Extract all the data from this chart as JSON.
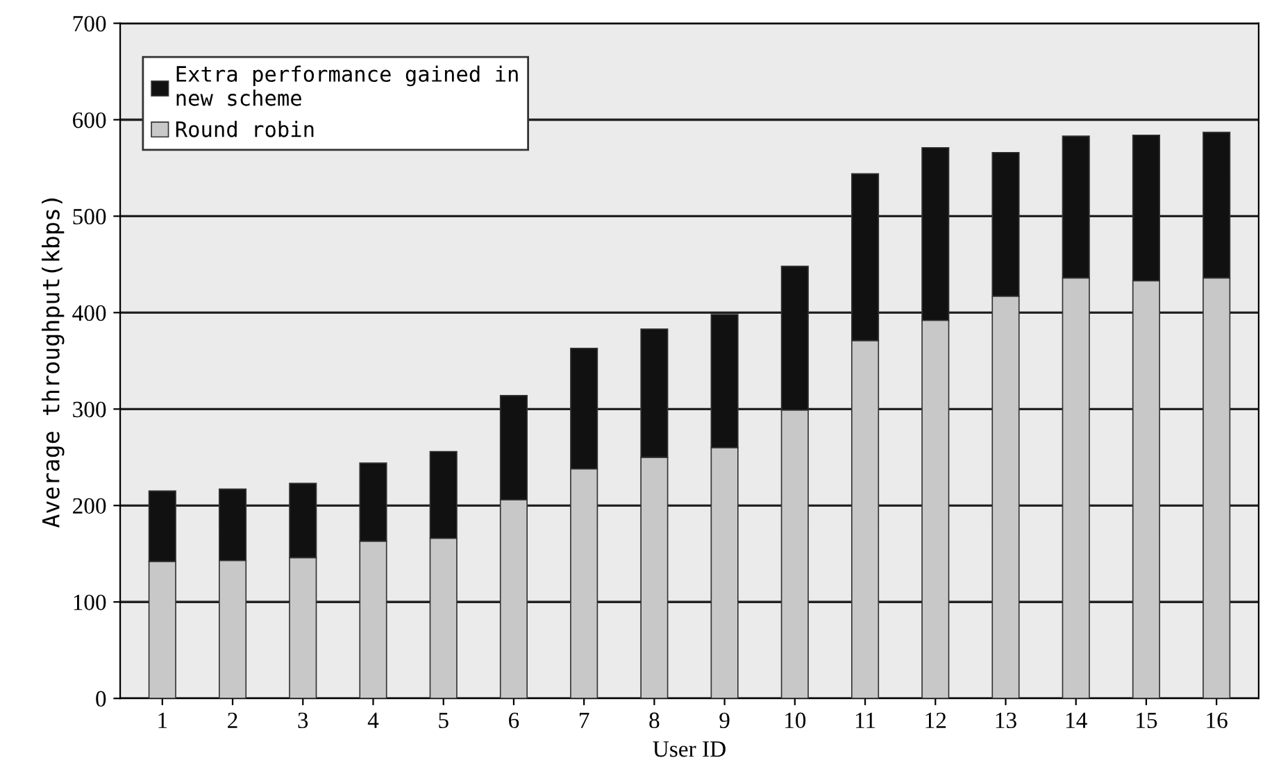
{
  "chart_data": {
    "type": "bar",
    "stacked": true,
    "xlabel": "User ID",
    "ylabel": "Average throughput(kbps)",
    "categories": [
      "1",
      "2",
      "3",
      "4",
      "5",
      "6",
      "7",
      "8",
      "9",
      "10",
      "11",
      "12",
      "13",
      "14",
      "15",
      "16"
    ],
    "series": [
      {
        "name": "Round robin",
        "color": "#c8c8c8",
        "values": [
          142,
          143,
          146,
          163,
          166,
          206,
          238,
          250,
          260,
          299,
          371,
          392,
          417,
          436,
          433,
          436
        ]
      },
      {
        "name": "Extra performance gained in\nnew scheme",
        "color": "#111111",
        "values": [
          73,
          74,
          77,
          81,
          90,
          108,
          125,
          133,
          138,
          149,
          173,
          179,
          149,
          147,
          151,
          151
        ]
      }
    ],
    "ylim": [
      0,
      700
    ],
    "yticks": [
      0,
      100,
      200,
      300,
      400,
      500,
      600,
      700
    ],
    "grid": "y",
    "legend": "top left"
  }
}
